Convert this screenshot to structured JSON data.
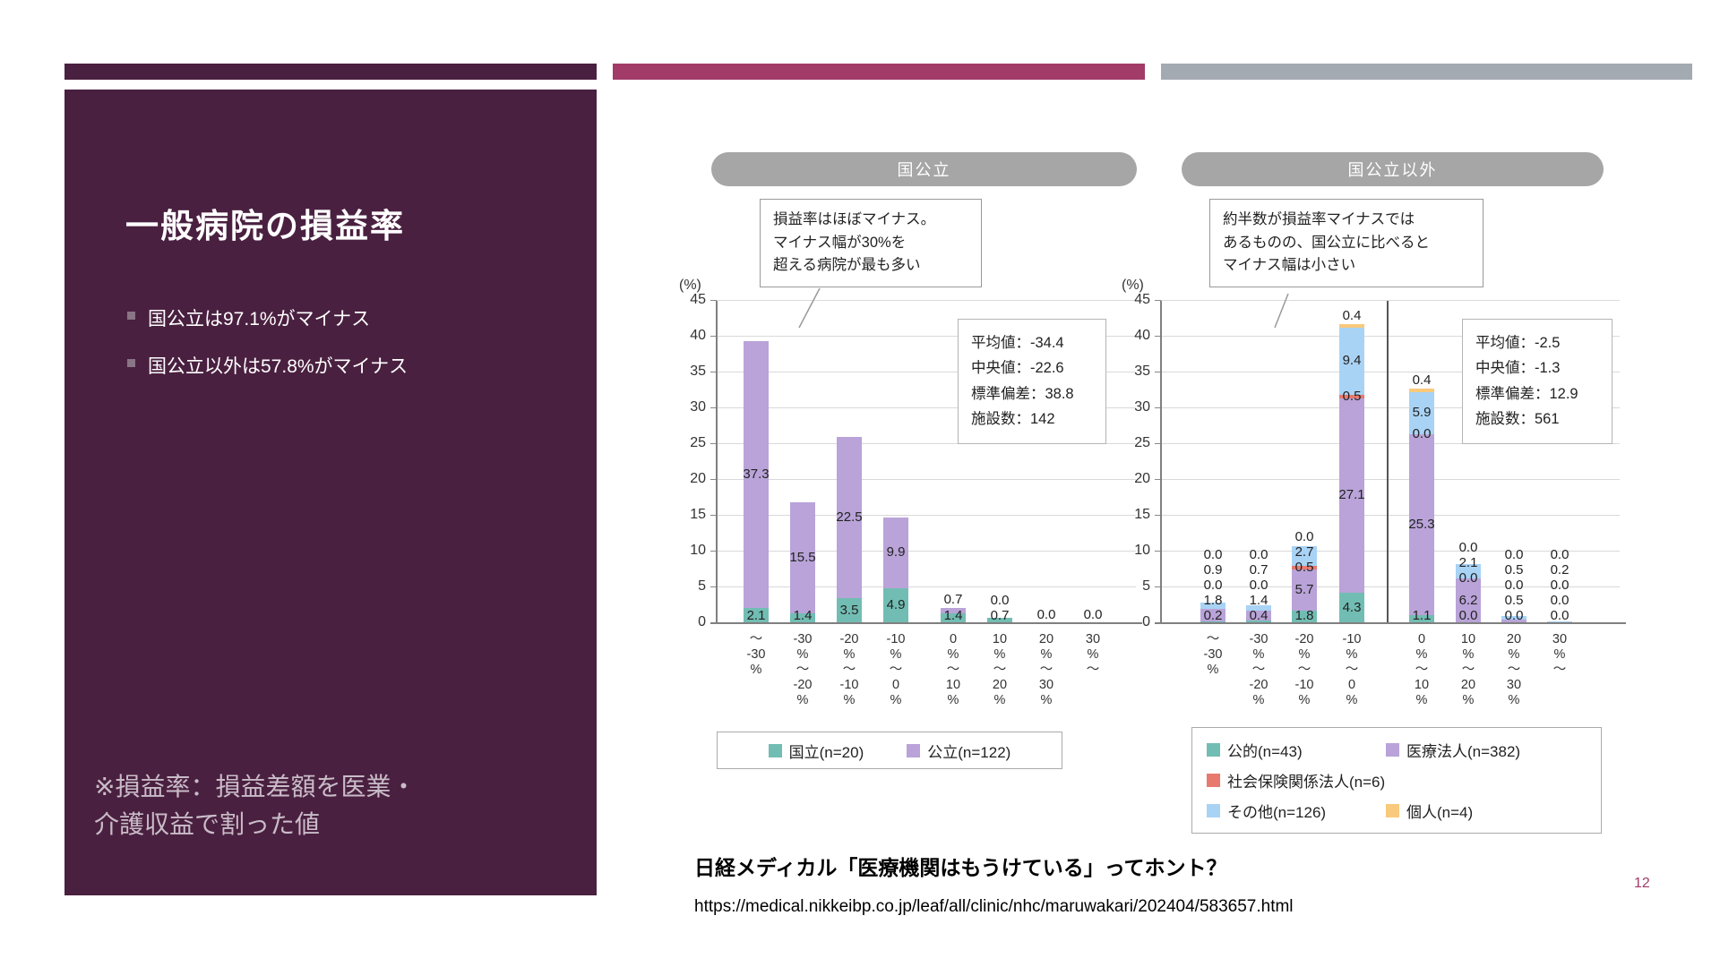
{
  "slide": {
    "page_number": "12",
    "source_title": "日経メディカル「医療機関はもうけている」ってホント？",
    "source_url": "https://medical.nikkeibp.co.jp/leaf/all/clinic/nhc/maruwakari/202404/583657.html"
  },
  "sidebar": {
    "title": "一般病院の損益率",
    "bullets": [
      "国公立は97.1%がマイナス",
      "国公立以外は57.8%がマイナス"
    ],
    "note_lines": [
      "※損益率：損益差額を医業・",
      "介護収益で割った値"
    ]
  },
  "colors": {
    "panel": "#4a2040",
    "accent2": "#a23b68",
    "accent3": "#a4aab2",
    "teal": "#72bdb3",
    "purple": "#b9a3d8",
    "red": "#e8796e",
    "blue": "#a9d3f5",
    "orange": "#f9c97c"
  },
  "chart_data": [
    {
      "type": "bar",
      "stacked": true,
      "title": "国公立",
      "ylabel": "(%)",
      "ylim": [
        0,
        45
      ],
      "ytick_step": 5,
      "grid": true,
      "legend_position": "bottom",
      "callout_lines": [
        "損益率はほぼマイナス。",
        "マイナス幅が30%を",
        "超える病院が最も多い"
      ],
      "stats_lines": [
        "平均値：-34.4",
        "中央値：-22.6",
        "標準偏差：38.8",
        "施設数：142"
      ],
      "categories": [
        "〜-30%",
        "-30%〜-20%",
        "-20%〜-10%",
        "-10%〜0%",
        "0%〜10%",
        "10%〜20%",
        "20%〜30%",
        "30%〜"
      ],
      "category_lines": [
        [
          "〜",
          "-30",
          "%"
        ],
        [
          "-30",
          "%",
          "〜",
          "-20",
          "%"
        ],
        [
          "-20",
          "%",
          "〜",
          "-10",
          "%"
        ],
        [
          "-10",
          "%",
          "〜",
          "0",
          "%"
        ],
        [
          "0",
          "%",
          "〜",
          "10",
          "%"
        ],
        [
          "10",
          "%",
          "〜",
          "20",
          "%"
        ],
        [
          "20",
          "%",
          "〜",
          "30",
          "%"
        ],
        [
          "30",
          "%",
          "〜"
        ]
      ],
      "series": [
        {
          "name": "国立(n=20)",
          "color": "teal",
          "values": [
            2.1,
            1.4,
            3.5,
            4.9,
            1.4,
            0.7,
            0.0,
            0.0
          ]
        },
        {
          "name": "公立(n=122)",
          "color": "purple",
          "values": [
            37.3,
            15.5,
            22.5,
            9.9,
            0.7,
            0.0,
            0.0,
            0.0
          ]
        }
      ],
      "bar_labels": [
        [
          "2.1",
          "37.3"
        ],
        [
          "1.4",
          "15.5"
        ],
        [
          "3.5",
          "22.5"
        ],
        [
          "4.9",
          "9.9"
        ],
        [
          "1.4",
          "0.7"
        ],
        [
          "0.7",
          "0.0"
        ],
        [
          "0.0",
          null
        ],
        [
          "0.0",
          null
        ]
      ],
      "legend": [
        {
          "label": "国立(n=20)",
          "color": "teal"
        },
        {
          "label": "公立(n=122)",
          "color": "purple"
        }
      ]
    },
    {
      "type": "bar",
      "stacked": true,
      "title": "国公立以外",
      "ylabel": "(%)",
      "ylim": [
        0,
        45
      ],
      "ytick_step": 5,
      "grid": true,
      "legend_position": "bottom",
      "callout_lines": [
        "約半数が損益率マイナスでは",
        "あるものの、国公立に比べると",
        "マイナス幅は小さい"
      ],
      "stats_lines": [
        "平均値：-2.5",
        "中央値：-1.3",
        "標準偏差：12.9",
        "施設数：561"
      ],
      "categories": [
        "〜-30%",
        "-30%〜-20%",
        "-20%〜-10%",
        "-10%〜0%",
        "0%〜10%",
        "10%〜20%",
        "20%〜30%",
        "30%〜"
      ],
      "category_lines": [
        [
          "〜",
          "-30",
          "%"
        ],
        [
          "-30",
          "%",
          "〜",
          "-20",
          "%"
        ],
        [
          "-20",
          "%",
          "〜",
          "-10",
          "%"
        ],
        [
          "-10",
          "%",
          "〜",
          "0",
          "%"
        ],
        [
          "0",
          "%",
          "〜",
          "10",
          "%"
        ],
        [
          "10",
          "%",
          "〜",
          "20",
          "%"
        ],
        [
          "20",
          "%",
          "〜",
          "30",
          "%"
        ],
        [
          "30",
          "%",
          "〜"
        ]
      ],
      "series": [
        {
          "name": "公的(n=43)",
          "color": "teal",
          "values": [
            0.2,
            0.4,
            1.8,
            4.3,
            1.1,
            0.0,
            0.0,
            0.0
          ]
        },
        {
          "name": "医療法人(n=382)",
          "color": "purple",
          "values": [
            1.8,
            1.4,
            5.7,
            27.1,
            25.3,
            6.2,
            0.5,
            0.0
          ]
        },
        {
          "name": "社会保険関係法人(n=6)",
          "color": "red",
          "values": [
            0.0,
            0.0,
            0.5,
            0.5,
            0.0,
            0.0,
            0.0,
            0.0
          ]
        },
        {
          "name": "その他(n=126)",
          "color": "blue",
          "values": [
            0.9,
            0.7,
            2.7,
            9.4,
            5.9,
            2.1,
            0.5,
            0.2
          ]
        },
        {
          "name": "個人(n=4)",
          "color": "orange",
          "values": [
            0.0,
            0.0,
            0.0,
            0.4,
            0.4,
            0.0,
            0.0,
            0.0
          ]
        }
      ],
      "bar_labels": [
        [
          "0.2",
          "1.8",
          "0.0",
          "0.9",
          "0.0"
        ],
        [
          "0.4",
          "1.4",
          "0.0",
          "0.7",
          "0.0"
        ],
        [
          "1.8",
          "5.7",
          "0.5",
          "2.7",
          "0.0"
        ],
        [
          "4.3",
          "27.1",
          "0.5",
          "9.4",
          "0.4"
        ],
        [
          "1.1",
          "25.3",
          "0.0",
          "5.9",
          "0.4"
        ],
        [
          "0.0",
          "6.2",
          "0.0",
          "2.1",
          "0.0"
        ],
        [
          "0.0",
          "0.5",
          "0.0",
          "0.5",
          "0.0"
        ],
        [
          "0.0",
          "0.0",
          "0.0",
          "0.2",
          "0.0"
        ]
      ],
      "legend": [
        {
          "label": "公的(n=43)",
          "color": "teal"
        },
        {
          "label": "医療法人(n=382)",
          "color": "purple"
        },
        {
          "label": "社会保険関係法人(n=6)",
          "color": "red",
          "span2": true
        },
        {
          "label": "その他(n=126)",
          "color": "blue"
        },
        {
          "label": "個人(n=4)",
          "color": "orange"
        }
      ]
    }
  ]
}
